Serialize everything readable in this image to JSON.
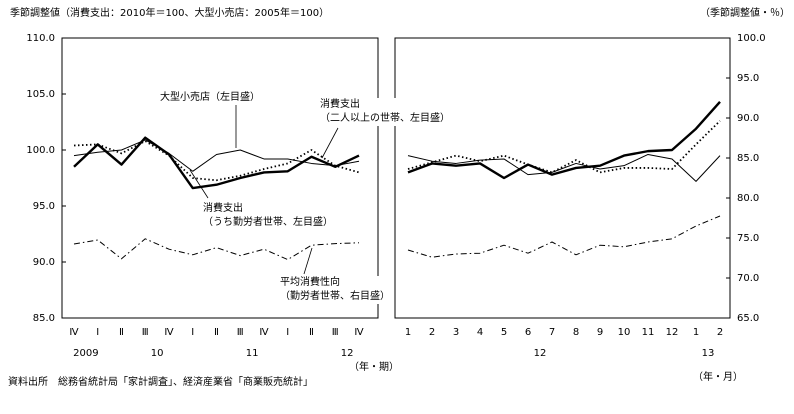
{
  "chart_data": [
    {
      "type": "line",
      "title": "季節調整値（消費支出：2010年＝100、大型小売店：2005年＝100）",
      "x_label": "（年・期）",
      "categories": [
        "Ⅳ",
        "Ⅰ",
        "Ⅱ",
        "Ⅲ",
        "Ⅳ",
        "Ⅰ",
        "Ⅱ",
        "Ⅲ",
        "Ⅳ",
        "Ⅰ",
        "Ⅱ",
        "Ⅲ",
        "Ⅳ"
      ],
      "year_labels": [
        "2009",
        null,
        null,
        "10",
        null,
        null,
        null,
        "11",
        null,
        null,
        null,
        "12",
        null
      ],
      "ylim": [
        85,
        110
      ],
      "yticks": [
        {
          "value": 85,
          "label": "85.0"
        },
        {
          "value": 90,
          "label": "90.0"
        },
        {
          "value": 95,
          "label": "95.0"
        },
        {
          "value": 100,
          "label": "100.0"
        },
        {
          "value": 105,
          "label": "105.0"
        },
        {
          "value": 110,
          "label": "110.0"
        }
      ],
      "series": [
        {
          "name": "大型小売店（左目盛）",
          "color": "#000000",
          "style": "thin",
          "values": [
            99.5,
            99.8,
            100.0,
            100.9,
            99.7,
            98.1,
            99.6,
            100.0,
            99.2,
            99.2,
            98.8,
            98.6,
            99.0
          ]
        },
        {
          "name": "消費支出\n（二人以上の世帯、左目盛）",
          "color": "#000000",
          "style": "dotted",
          "values": [
            100.4,
            100.5,
            99.7,
            100.8,
            99.5,
            97.5,
            97.3,
            97.7,
            98.3,
            98.8,
            100.0,
            98.6,
            98.0
          ]
        },
        {
          "name": "消費支出\n（うち勤労者世帯、左目盛）",
          "color": "#000000",
          "style": "thick",
          "values": [
            98.5,
            100.5,
            98.7,
            101.1,
            99.6,
            96.6,
            96.9,
            97.5,
            98.0,
            98.1,
            99.4,
            98.5,
            99.5
          ]
        },
        {
          "name": "平均消費性向\n（勤労者世帯、右目盛）",
          "color": "#000000",
          "style": "dashdot",
          "axis": "y2",
          "values": [
            74.25,
            74.75,
            72.4,
            74.9,
            73.6,
            72.9,
            73.8,
            72.8,
            73.6,
            72.3,
            74.1,
            74.3,
            74.4
          ]
        }
      ]
    },
    {
      "type": "line",
      "x_label": "（年・月）",
      "y2_label": "（季節調整値・％）",
      "categories": [
        "1",
        "2",
        "3",
        "4",
        "5",
        "6",
        "7",
        "8",
        "9",
        "10",
        "11",
        "12",
        "1",
        "2"
      ],
      "year_labels": [
        null,
        null,
        null,
        null,
        null,
        "12",
        null,
        null,
        null,
        null,
        null,
        null,
        "13",
        null
      ],
      "y2lim": [
        65,
        100
      ],
      "y2ticks": [
        {
          "value": 65,
          "label": "65.0"
        },
        {
          "value": 70,
          "label": "70.0"
        },
        {
          "value": 75,
          "label": "75.0"
        },
        {
          "value": 80,
          "label": "80.0"
        },
        {
          "value": 85,
          "label": "85.0"
        },
        {
          "value": 90,
          "label": "90.0"
        },
        {
          "value": 95,
          "label": "95.0"
        },
        {
          "value": 100,
          "label": "100.0"
        }
      ],
      "series": [
        {
          "color": "#000000",
          "style": "thin",
          "values": [
            99.5,
            99.0,
            98.8,
            99.1,
            99.2,
            97.8,
            98.0,
            98.8,
            98.3,
            98.6,
            99.6,
            99.2,
            97.2,
            99.5
          ]
        },
        {
          "color": "#000000",
          "style": "dotted",
          "values": [
            98.3,
            98.9,
            99.5,
            99.0,
            99.5,
            98.7,
            98.0,
            99.1,
            98.0,
            98.4,
            98.4,
            98.3,
            100.5,
            102.6
          ]
        },
        {
          "color": "#000000",
          "style": "thick",
          "values": [
            98.0,
            98.8,
            98.6,
            98.8,
            97.5,
            98.7,
            97.8,
            98.4,
            98.6,
            99.5,
            99.9,
            100.0,
            101.9,
            104.3
          ]
        },
        {
          "color": "#000000",
          "style": "dashdot",
          "axis": "y2",
          "values": [
            73.5,
            72.6,
            73.0,
            73.1,
            74.1,
            73.1,
            74.5,
            72.9,
            74.1,
            73.9,
            74.5,
            74.9,
            76.5,
            77.75
          ]
        }
      ]
    }
  ],
  "source": "資料出所　総務省統計局「家計調査」、経済産業省「商業販売統計」"
}
